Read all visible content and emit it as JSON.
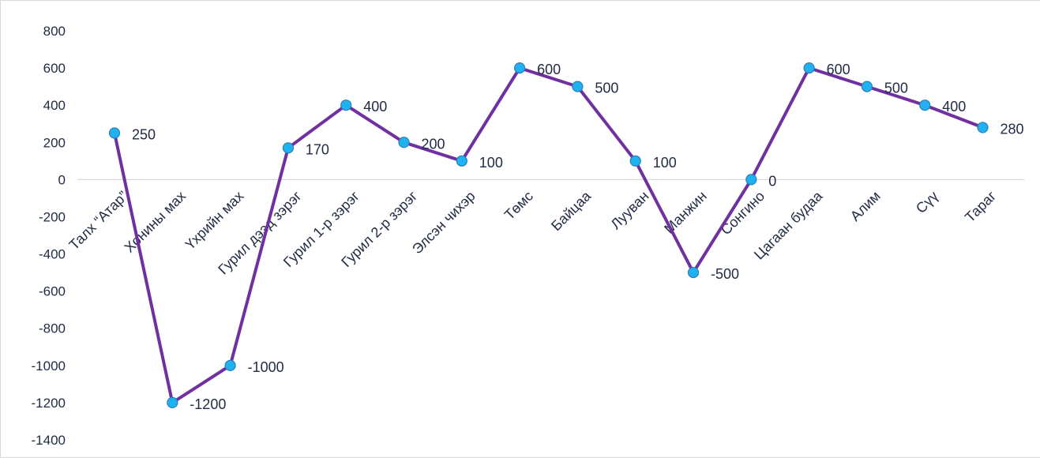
{
  "chart_data": {
    "type": "line",
    "categories": [
      "Талх “Атар”",
      "Хонины мах",
      "Үхрийн мах",
      "Гурил дээд зэрэг",
      "Гурил 1-р зэрэг",
      "Гурил 2-р зэрэг",
      "Элсэн чихэр",
      "Төмс",
      "Байцаа",
      "Лууван",
      "Манжин",
      "Сонгино",
      "Цагаан будаа",
      "Алим",
      "Сүү",
      "Тараг"
    ],
    "series": [
      {
        "values": [
          250,
          -1200,
          -1000,
          170,
          400,
          200,
          100,
          600,
          500,
          100,
          -500,
          0,
          600,
          500,
          400,
          280
        ]
      }
    ],
    "data_labels": [
      "250",
      "-1200",
      "-1000",
      "170",
      "400",
      "200",
      "100",
      "600",
      "500",
      "100",
      "-500",
      "0",
      "600",
      "500",
      "400",
      "280"
    ],
    "y_ticks": [
      "800",
      "600",
      "400",
      "200",
      "0",
      "-200",
      "-400",
      "-600",
      "-800",
      "-1000",
      "-1200",
      "-1400"
    ],
    "ylim": [
      -1400,
      800
    ],
    "grid": false,
    "legend": "none",
    "colors": {
      "line": "#7030a0",
      "marker": "#1fb1f0",
      "marker_edge": "#2c7fb8",
      "axis": "#d9d9d9",
      "text": "#1f2a44",
      "frame": "#d9d9d9"
    }
  }
}
